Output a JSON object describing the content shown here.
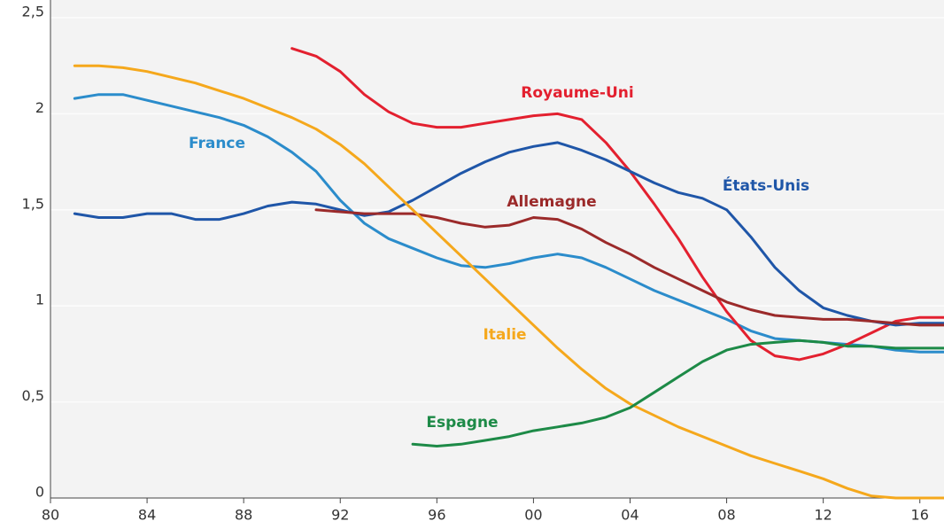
{
  "chart_data": {
    "type": "line",
    "x": [
      1981,
      1982,
      1983,
      1984,
      1985,
      1986,
      1987,
      1988,
      1989,
      1990,
      1991,
      1992,
      1993,
      1994,
      1995,
      1996,
      1997,
      1998,
      1999,
      2000,
      2001,
      2002,
      2003,
      2004,
      2005,
      2006,
      2007,
      2008,
      2009,
      2010,
      2011,
      2012,
      2013,
      2014,
      2015,
      2016,
      2017
    ],
    "xlim": [
      1980,
      2017
    ],
    "xticks": [
      {
        "value": 1980,
        "label": "80"
      },
      {
        "value": 1984,
        "label": "84"
      },
      {
        "value": 1988,
        "label": "88"
      },
      {
        "value": 1992,
        "label": "92"
      },
      {
        "value": 1996,
        "label": "96"
      },
      {
        "value": 2000,
        "label": "00"
      },
      {
        "value": 2004,
        "label": "04"
      },
      {
        "value": 2008,
        "label": "08"
      },
      {
        "value": 2012,
        "label": "12"
      },
      {
        "value": 2016,
        "label": "16"
      }
    ],
    "ylim": [
      0,
      2.5
    ],
    "yticks": [
      0,
      {
        "value": 0.5,
        "label": "0,5"
      },
      1,
      {
        "value": 1.5,
        "label": "1,5"
      },
      2,
      {
        "value": 2.5,
        "label": "2,5"
      }
    ],
    "grid": true,
    "series": [
      {
        "name": "France",
        "color": "#2b8ccb",
        "values": [
          2.08,
          2.1,
          2.1,
          2.07,
          2.04,
          2.01,
          1.98,
          1.94,
          1.88,
          1.8,
          1.7,
          1.55,
          1.43,
          1.35,
          1.3,
          1.25,
          1.21,
          1.2,
          1.22,
          1.25,
          1.27,
          1.25,
          1.2,
          1.14,
          1.08,
          1.03,
          0.98,
          0.93,
          0.87,
          0.83,
          0.82,
          0.81,
          0.8,
          0.79,
          0.77,
          0.76,
          0.76
        ]
      },
      {
        "name": "Royaume-Uni",
        "color": "#e3202f",
        "values": [
          null,
          null,
          null,
          null,
          null,
          null,
          null,
          null,
          null,
          2.34,
          2.3,
          2.22,
          2.1,
          2.01,
          1.95,
          1.93,
          1.93,
          1.95,
          1.97,
          1.99,
          2.0,
          1.97,
          1.85,
          1.7,
          1.53,
          1.35,
          1.15,
          0.97,
          0.82,
          0.74,
          0.72,
          0.75,
          0.8,
          0.86,
          0.92,
          0.94,
          0.94
        ]
      },
      {
        "name": "États-Unis",
        "color": "#1f56a8",
        "values": [
          1.48,
          1.46,
          1.46,
          1.48,
          1.48,
          1.45,
          1.45,
          1.48,
          1.52,
          1.54,
          1.53,
          1.5,
          1.47,
          1.49,
          1.55,
          1.62,
          1.69,
          1.75,
          1.8,
          1.83,
          1.85,
          1.81,
          1.76,
          1.7,
          1.64,
          1.59,
          1.56,
          1.5,
          1.36,
          1.2,
          1.08,
          0.99,
          0.95,
          0.92,
          0.9,
          0.91,
          0.91
        ]
      },
      {
        "name": "Allemagne",
        "color": "#9b2a2a",
        "values": [
          null,
          null,
          null,
          null,
          null,
          null,
          null,
          null,
          null,
          null,
          1.5,
          1.49,
          1.48,
          1.48,
          1.48,
          1.46,
          1.43,
          1.41,
          1.42,
          1.46,
          1.45,
          1.4,
          1.33,
          1.27,
          1.2,
          1.14,
          1.08,
          1.02,
          0.98,
          0.95,
          0.94,
          0.93,
          0.93,
          0.92,
          0.91,
          0.9,
          0.9
        ]
      },
      {
        "name": "Italie",
        "color": "#f5a81c",
        "values": [
          2.25,
          2.25,
          2.24,
          2.22,
          2.19,
          2.16,
          2.12,
          2.08,
          2.03,
          1.98,
          1.92,
          1.84,
          1.74,
          1.62,
          1.5,
          1.38,
          1.26,
          1.14,
          1.02,
          0.9,
          0.78,
          0.67,
          0.57,
          0.49,
          0.43,
          0.37,
          0.32,
          0.27,
          0.22,
          0.18,
          0.14,
          0.1,
          0.05,
          0.01,
          0,
          0,
          0
        ]
      },
      {
        "name": "Espagne",
        "color": "#1d8a47",
        "values": [
          null,
          null,
          null,
          null,
          null,
          null,
          null,
          null,
          null,
          null,
          null,
          null,
          null,
          null,
          0.28,
          0.27,
          0.28,
          0.3,
          0.32,
          0.35,
          0.37,
          0.39,
          0.42,
          0.47,
          0.55,
          0.63,
          0.71,
          0.77,
          0.8,
          0.81,
          0.82,
          0.81,
          0.79,
          0.79,
          0.78,
          0.78,
          0.78
        ]
      }
    ]
  }
}
